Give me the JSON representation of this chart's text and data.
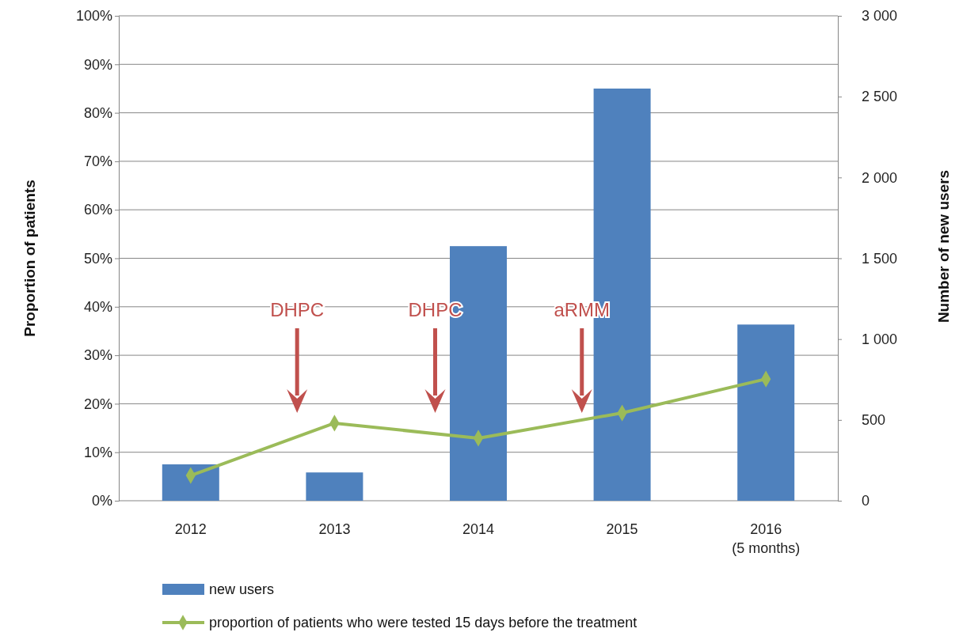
{
  "chart_data": {
    "type": "bar",
    "categories": [
      "2012",
      "2013",
      "2014",
      "2015",
      "2016\n(5 months)"
    ],
    "series": [
      {
        "name": "new users",
        "axis": "y2",
        "color": "#4f81bd",
        "values": [
          225,
          175,
          1575,
          2550,
          1090
        ]
      },
      {
        "name": "proportion of patients who were tested 15 days before the treatment",
        "type": "line",
        "color": "#9bbb59",
        "marker": "diamond",
        "values": [
          5.2,
          16,
          12.9,
          18.1,
          25.1
        ]
      }
    ],
    "ylabel": "Proportion of patients",
    "y2label": "Number of new users",
    "ylim": [
      0,
      100
    ],
    "yticks": [
      {
        "value": 0,
        "label": "0%"
      },
      {
        "value": 10,
        "label": "10%"
      },
      {
        "value": 20,
        "label": "20%"
      },
      {
        "value": 30,
        "label": "30%"
      },
      {
        "value": 40,
        "label": "40%"
      },
      {
        "value": 50,
        "label": "50%"
      },
      {
        "value": 60,
        "label": "60%"
      },
      {
        "value": 70,
        "label": "70%"
      },
      {
        "value": 80,
        "label": "80%"
      },
      {
        "value": 90,
        "label": "90%"
      },
      {
        "value": 100,
        "label": "100%"
      }
    ],
    "y2lim": [
      0,
      3000
    ],
    "y2ticks": [
      0,
      500,
      {
        "value": 1000,
        "label": "1 000"
      },
      {
        "value": 1500,
        "label": "1 500"
      },
      {
        "value": 2000,
        "label": "2 000"
      },
      {
        "value": 2500,
        "label": "2 500"
      },
      {
        "value": 3000,
        "label": "3 000"
      }
    ],
    "annotations": [
      "DHPC",
      "DHPC",
      "aRMM"
    ],
    "grid": "y",
    "legend": "bottom"
  }
}
